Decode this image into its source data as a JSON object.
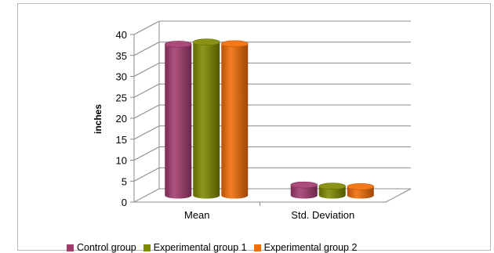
{
  "chart_data": {
    "type": "bar",
    "style": "3d-cylinder",
    "categories": [
      "Mean",
      "Std. Deviation"
    ],
    "series": [
      {
        "name": "Control group",
        "values": [
          36.1,
          2.5
        ],
        "color": "#a33b6e"
      },
      {
        "name": "Experimental group 1",
        "values": [
          36.6,
          2.2
        ],
        "color": "#808a00"
      },
      {
        "name": "Experimental group 2",
        "values": [
          36.2,
          2.1
        ],
        "color": "#f26d06"
      }
    ],
    "title": "",
    "xlabel": "",
    "ylabel": "inches",
    "ylim": [
      0,
      40
    ],
    "yticks": [
      0,
      5,
      10,
      15,
      20,
      25,
      30,
      35,
      40
    ],
    "grid": true,
    "legend_position": "bottom"
  }
}
